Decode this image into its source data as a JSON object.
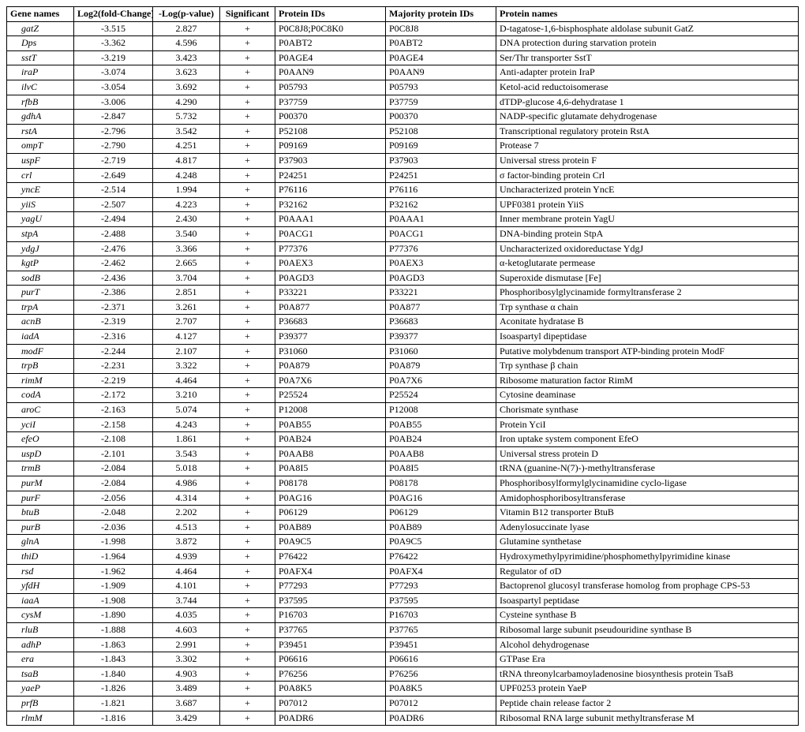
{
  "columns": [
    "Gene names",
    "Log2(fold-Change)",
    "-Log(p-value)",
    "Significant",
    "Protein IDs",
    "Majority protein IDs",
    "Protein names"
  ],
  "rows": [
    {
      "gene": "gatZ",
      "log2": "-3.515",
      "logp": "2.827",
      "sig": "+",
      "pid": "P0C8J8;P0C8K0",
      "mpid": "P0C8J8",
      "name": "D-tagatose-1,6-bisphosphate aldolase subunit GatZ"
    },
    {
      "gene": "Dps",
      "log2": "-3.362",
      "logp": "4.596",
      "sig": "+",
      "pid": "P0ABT2",
      "mpid": "P0ABT2",
      "name": "DNA protection during starvation protein"
    },
    {
      "gene": "sstT",
      "log2": "-3.219",
      "logp": "3.423",
      "sig": "+",
      "pid": "P0AGE4",
      "mpid": "P0AGE4",
      "name": "Ser/Thr transporter SstT"
    },
    {
      "gene": "iraP",
      "log2": "-3.074",
      "logp": "3.623",
      "sig": "+",
      "pid": "P0AAN9",
      "mpid": "P0AAN9",
      "name": "Anti-adapter protein IraP"
    },
    {
      "gene": "ilvC",
      "log2": "-3.054",
      "logp": "3.692",
      "sig": "+",
      "pid": "P05793",
      "mpid": "P05793",
      "name": "Ketol-acid reductoisomerase"
    },
    {
      "gene": "rfbB",
      "log2": "-3.006",
      "logp": "4.290",
      "sig": "+",
      "pid": "P37759",
      "mpid": "P37759",
      "name": "dTDP-glucose 4,6-dehydratase 1"
    },
    {
      "gene": "gdhA",
      "log2": "-2.847",
      "logp": "5.732",
      "sig": "+",
      "pid": "P00370",
      "mpid": "P00370",
      "name": "NADP-specific glutamate dehydrogenase"
    },
    {
      "gene": "rstA",
      "log2": "-2.796",
      "logp": "3.542",
      "sig": "+",
      "pid": "P52108",
      "mpid": "P52108",
      "name": "Transcriptional regulatory protein RstA"
    },
    {
      "gene": "ompT",
      "log2": "-2.790",
      "logp": "4.251",
      "sig": "+",
      "pid": "P09169",
      "mpid": "P09169",
      "name": "Protease 7"
    },
    {
      "gene": "uspF",
      "log2": "-2.719",
      "logp": "4.817",
      "sig": "+",
      "pid": "P37903",
      "mpid": "P37903",
      "name": "Universal stress protein F"
    },
    {
      "gene": "crl",
      "log2": "-2.649",
      "logp": "4.248",
      "sig": "+",
      "pid": "P24251",
      "mpid": "P24251",
      "name": "σ factor-binding protein Crl"
    },
    {
      "gene": "yncE",
      "log2": "-2.514",
      "logp": "1.994",
      "sig": "+",
      "pid": "P76116",
      "mpid": "P76116",
      "name": "Uncharacterized protein YncE"
    },
    {
      "gene": "yiiS",
      "log2": "-2.507",
      "logp": "4.223",
      "sig": "+",
      "pid": "P32162",
      "mpid": "P32162",
      "name": "UPF0381 protein YiiS"
    },
    {
      "gene": "yagU",
      "log2": "-2.494",
      "logp": "2.430",
      "sig": "+",
      "pid": "P0AAA1",
      "mpid": "P0AAA1",
      "name": "Inner membrane protein YagU"
    },
    {
      "gene": "stpA",
      "log2": "-2.488",
      "logp": "3.540",
      "sig": "+",
      "pid": "P0ACG1",
      "mpid": "P0ACG1",
      "name": "DNA-binding protein StpA"
    },
    {
      "gene": "ydgJ",
      "log2": "-2.476",
      "logp": "3.366",
      "sig": "+",
      "pid": "P77376",
      "mpid": "P77376",
      "name": "Uncharacterized oxidoreductase YdgJ"
    },
    {
      "gene": "kgtP",
      "log2": "-2.462",
      "logp": "2.665",
      "sig": "+",
      "pid": "P0AEX3",
      "mpid": "P0AEX3",
      "name": "α-ketoglutarate permease"
    },
    {
      "gene": "sodB",
      "log2": "-2.436",
      "logp": "3.704",
      "sig": "+",
      "pid": "P0AGD3",
      "mpid": "P0AGD3",
      "name": "Superoxide dismutase [Fe]"
    },
    {
      "gene": "purT",
      "log2": "-2.386",
      "logp": "2.851",
      "sig": "+",
      "pid": "P33221",
      "mpid": "P33221",
      "name": "Phosphoribosylglycinamide formyltransferase 2"
    },
    {
      "gene": "trpA",
      "log2": "-2.371",
      "logp": "3.261",
      "sig": "+",
      "pid": "P0A877",
      "mpid": "P0A877",
      "name": "Trp synthase α chain"
    },
    {
      "gene": "acnB",
      "log2": "-2.319",
      "logp": "2.707",
      "sig": "+",
      "pid": "P36683",
      "mpid": "P36683",
      "name": "Aconitate hydratase B"
    },
    {
      "gene": "iadA",
      "log2": "-2.316",
      "logp": "4.127",
      "sig": "+",
      "pid": "P39377",
      "mpid": "P39377",
      "name": "Isoaspartyl dipeptidase"
    },
    {
      "gene": "modF",
      "log2": "-2.244",
      "logp": "2.107",
      "sig": "+",
      "pid": "P31060",
      "mpid": "P31060",
      "name": "Putative molybdenum transport ATP-binding protein ModF"
    },
    {
      "gene": "trpB",
      "log2": "-2.231",
      "logp": "3.322",
      "sig": "+",
      "pid": "P0A879",
      "mpid": "P0A879",
      "name": "Trp synthase β chain"
    },
    {
      "gene": "rimM",
      "log2": "-2.219",
      "logp": "4.464",
      "sig": "+",
      "pid": "P0A7X6",
      "mpid": "P0A7X6",
      "name": "Ribosome maturation factor RimM"
    },
    {
      "gene": "codA",
      "log2": "-2.172",
      "logp": "3.210",
      "sig": "+",
      "pid": "P25524",
      "mpid": "P25524",
      "name": "Cytosine deaminase"
    },
    {
      "gene": "aroC",
      "log2": "-2.163",
      "logp": "5.074",
      "sig": "+",
      "pid": "P12008",
      "mpid": "P12008",
      "name": "Chorismate synthase"
    },
    {
      "gene": "yciI",
      "log2": "-2.158",
      "logp": "4.243",
      "sig": "+",
      "pid": "P0AB55",
      "mpid": "P0AB55",
      "name": "Protein YciI"
    },
    {
      "gene": "efeO",
      "log2": "-2.108",
      "logp": "1.861",
      "sig": "+",
      "pid": "P0AB24",
      "mpid": "P0AB24",
      "name": "Iron uptake system component EfeO"
    },
    {
      "gene": "uspD",
      "log2": "-2.101",
      "logp": "3.543",
      "sig": "+",
      "pid": "P0AAB8",
      "mpid": "P0AAB8",
      "name": "Universal stress protein D"
    },
    {
      "gene": "trmB",
      "log2": "-2.084",
      "logp": "5.018",
      "sig": "+",
      "pid": "P0A8I5",
      "mpid": "P0A8I5",
      "name": "tRNA (guanine-N(7)-)-methyltransferase"
    },
    {
      "gene": "purM",
      "log2": "-2.084",
      "logp": "4.986",
      "sig": "+",
      "pid": "P08178",
      "mpid": "P08178",
      "name": "Phosphoribosylformylglycinamidine cyclo-ligase"
    },
    {
      "gene": "purF",
      "log2": "-2.056",
      "logp": "4.314",
      "sig": "+",
      "pid": "P0AG16",
      "mpid": "P0AG16",
      "name": "Amidophosphoribosyltransferase"
    },
    {
      "gene": "btuB",
      "log2": "-2.048",
      "logp": "2.202",
      "sig": "+",
      "pid": "P06129",
      "mpid": "P06129",
      "name": "Vitamin B12 transporter BtuB"
    },
    {
      "gene": "purB",
      "log2": "-2.036",
      "logp": "4.513",
      "sig": "+",
      "pid": "P0AB89",
      "mpid": "P0AB89",
      "name": "Adenylosuccinate lyase"
    },
    {
      "gene": "glnA",
      "log2": "-1.998",
      "logp": "3.872",
      "sig": "+",
      "pid": "P0A9C5",
      "mpid": "P0A9C5",
      "name": "Glutamine synthetase"
    },
    {
      "gene": "thiD",
      "log2": "-1.964",
      "logp": "4.939",
      "sig": "+",
      "pid": "P76422",
      "mpid": "P76422",
      "name": "Hydroxymethylpyrimidine/phosphomethylpyrimidine kinase"
    },
    {
      "gene": "rsd",
      "log2": "-1.962",
      "logp": "4.464",
      "sig": "+",
      "pid": "P0AFX4",
      "mpid": "P0AFX4",
      "name": "Regulator of σD"
    },
    {
      "gene": "yfdH",
      "log2": "-1.909",
      "logp": "4.101",
      "sig": "+",
      "pid": "P77293",
      "mpid": "P77293",
      "name": "Bactoprenol glucosyl transferase homolog from prophage CPS-53"
    },
    {
      "gene": "iaaA",
      "log2": "-1.908",
      "logp": "3.744",
      "sig": "+",
      "pid": "P37595",
      "mpid": "P37595",
      "name": "Isoaspartyl peptidase"
    },
    {
      "gene": "cysM",
      "log2": "-1.890",
      "logp": "4.035",
      "sig": "+",
      "pid": "P16703",
      "mpid": "P16703",
      "name": "Cysteine synthase B"
    },
    {
      "gene": "rluB",
      "log2": "-1.888",
      "logp": "4.603",
      "sig": "+",
      "pid": "P37765",
      "mpid": "P37765",
      "name": "Ribosomal large subunit pseudouridine synthase B"
    },
    {
      "gene": "adhP",
      "log2": "-1.863",
      "logp": "2.991",
      "sig": "+",
      "pid": "P39451",
      "mpid": "P39451",
      "name": "Alcohol dehydrogenase"
    },
    {
      "gene": "era",
      "log2": "-1.843",
      "logp": "3.302",
      "sig": "+",
      "pid": "P06616",
      "mpid": "P06616",
      "name": "GTPase Era"
    },
    {
      "gene": "tsaB",
      "log2": "-1.840",
      "logp": "4.903",
      "sig": "+",
      "pid": "P76256",
      "mpid": "P76256",
      "name": "tRNA threonylcarbamoyladenosine biosynthesis protein TsaB"
    },
    {
      "gene": "yaeP",
      "log2": "-1.826",
      "logp": "3.489",
      "sig": "+",
      "pid": "P0A8K5",
      "mpid": "P0A8K5",
      "name": "UPF0253 protein YaeP"
    },
    {
      "gene": "prfB",
      "log2": "-1.821",
      "logp": "3.687",
      "sig": "+",
      "pid": "P07012",
      "mpid": "P07012",
      "name": "Peptide chain release factor 2"
    },
    {
      "gene": "rlmM",
      "log2": "-1.816",
      "logp": "3.429",
      "sig": "+",
      "pid": "P0ADR6",
      "mpid": "P0ADR6",
      "name": "Ribosomal RNA large subunit methyltransferase M"
    }
  ]
}
